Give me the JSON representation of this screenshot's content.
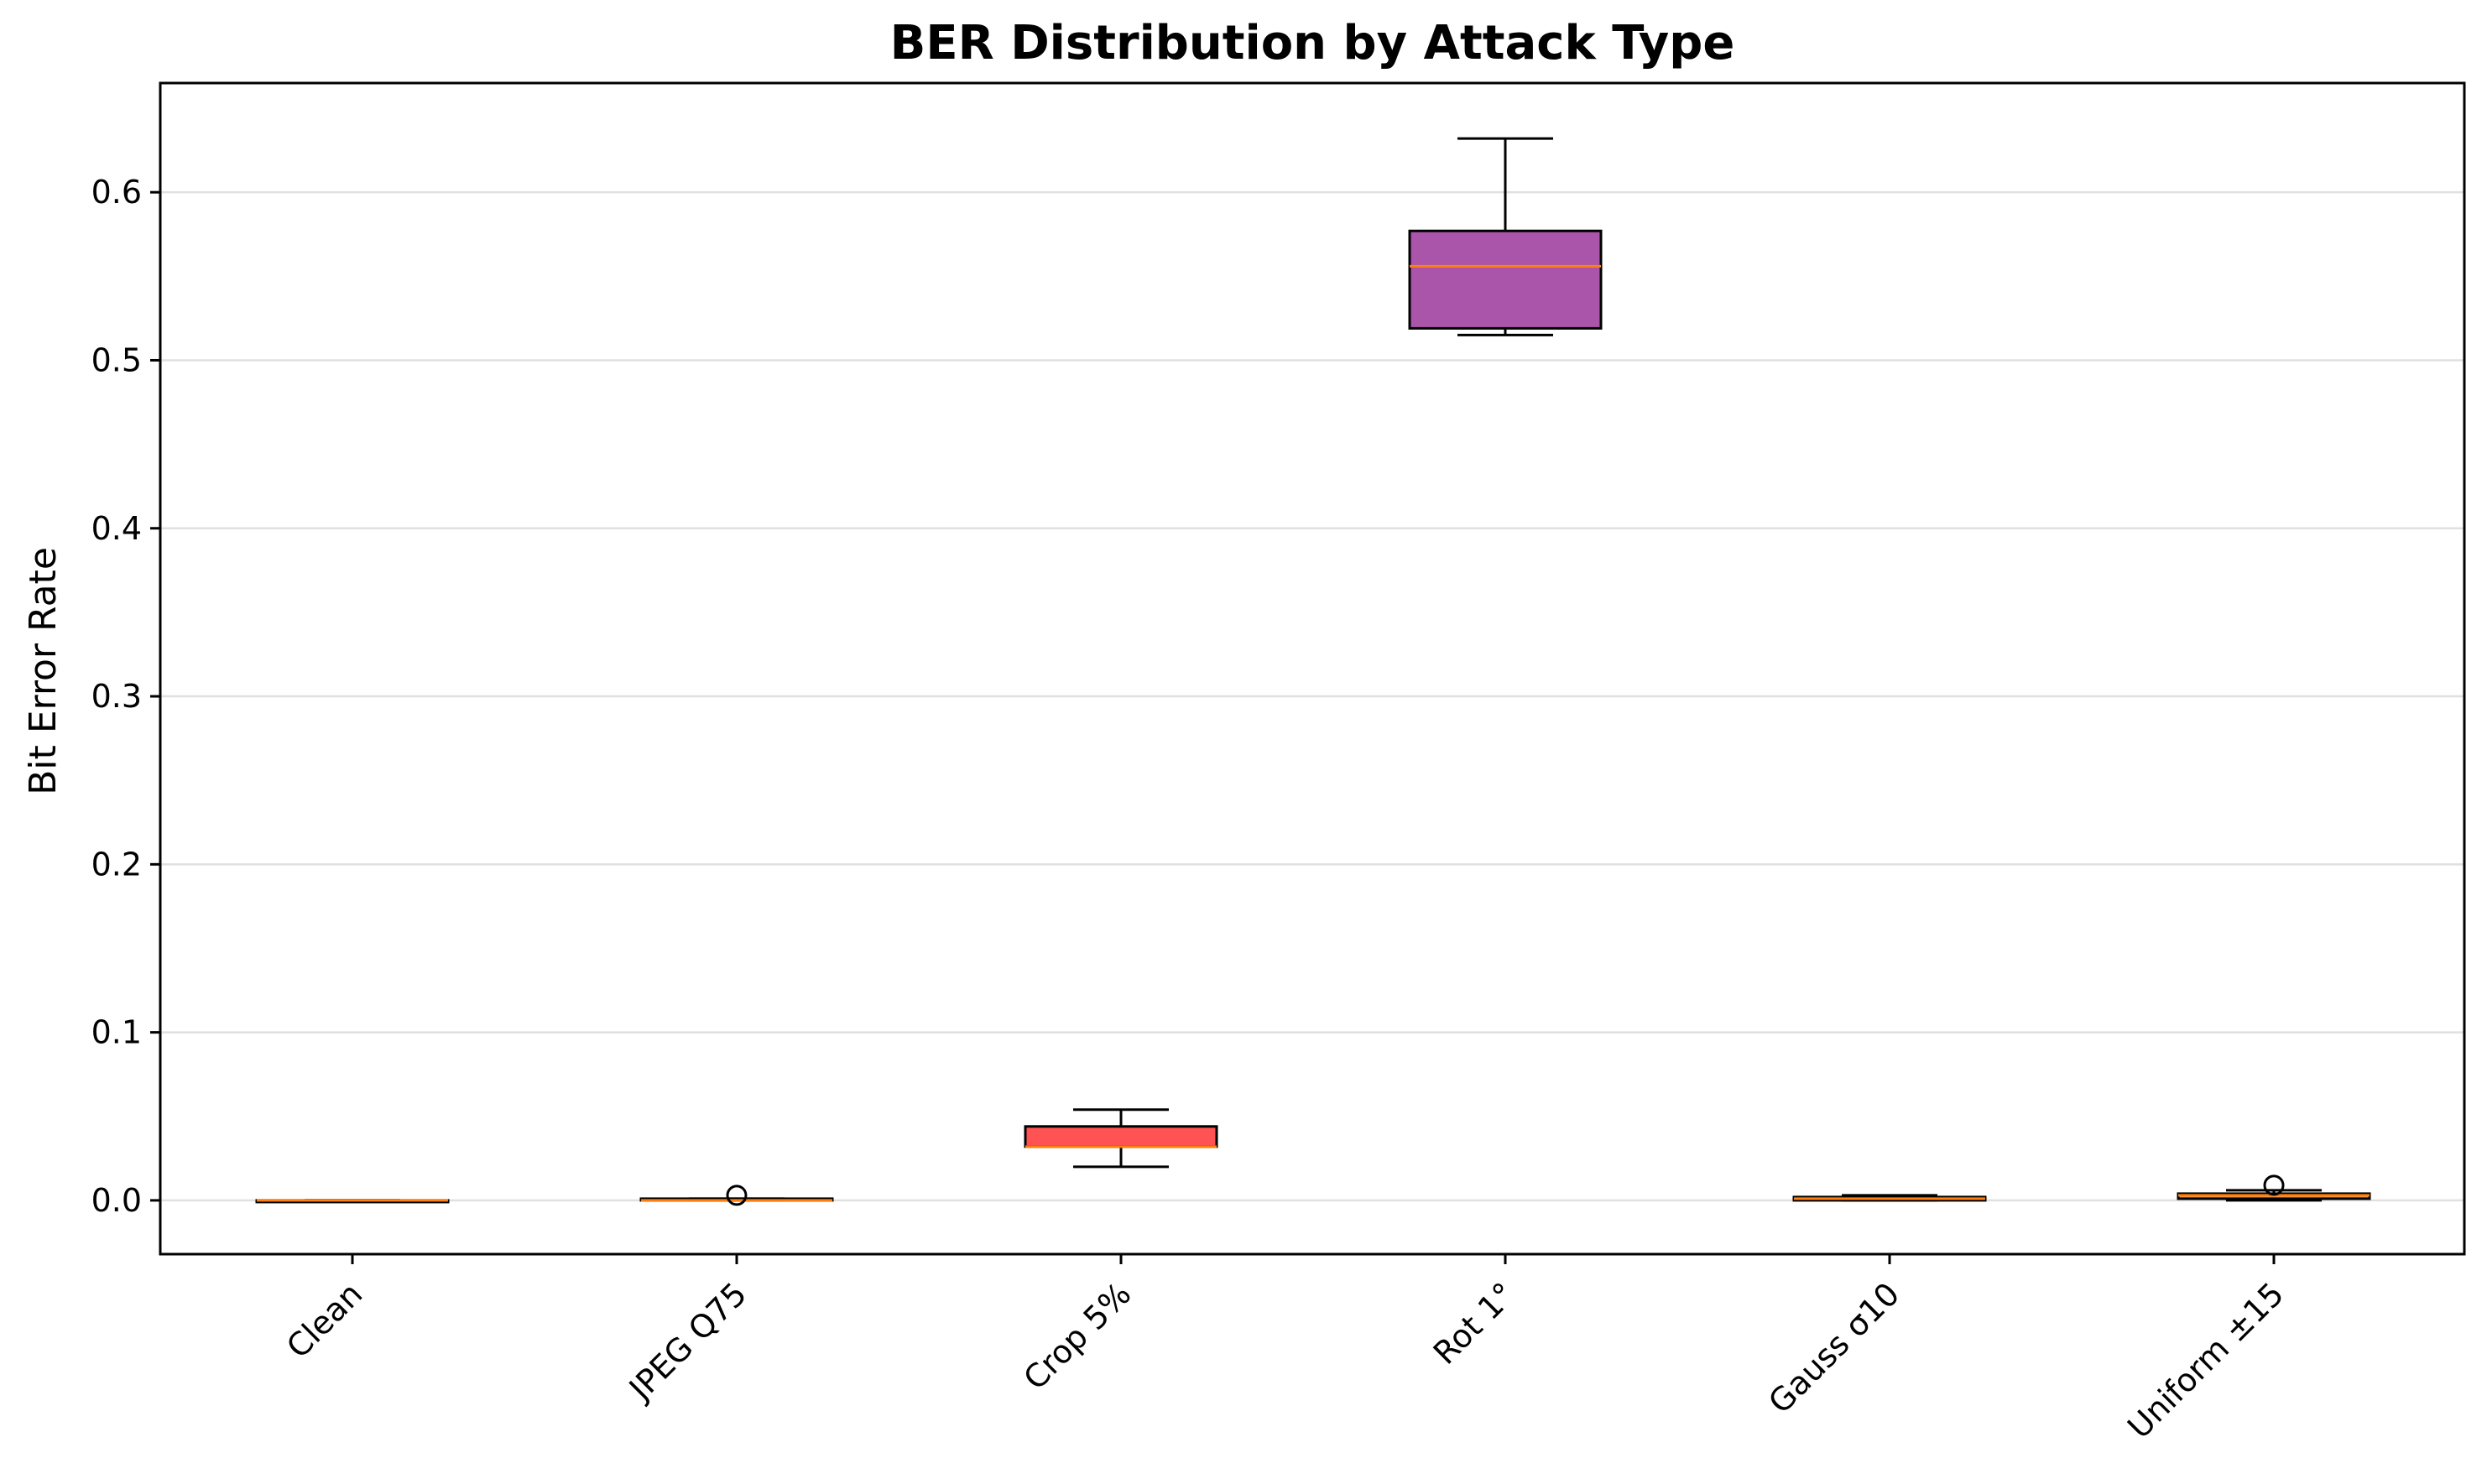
{
  "chart_data": {
    "type": "box",
    "title": "BER Distribution by Attack Type",
    "xlabel": "",
    "ylabel": "Bit Error Rate",
    "ylim": [
      -0.032,
      0.665
    ],
    "yticks": [
      0.0,
      0.1,
      0.2,
      0.3,
      0.4,
      0.5,
      0.6
    ],
    "ytick_labels": [
      "0.0",
      "0.1",
      "0.2",
      "0.3",
      "0.4",
      "0.5",
      "0.6"
    ],
    "grid": "y",
    "categories": [
      "Clean",
      "JPEG Q75",
      "Crop 5%",
      "Rot 1°",
      "Gauss σ10",
      "Uniform ±15"
    ],
    "boxes": [
      {
        "category": "Clean",
        "whisker_low": 0.0,
        "q1": 0.0,
        "median": 0.0,
        "q3": 0.0,
        "whisker_high": 0.0,
        "outliers": [],
        "color": "#e67e22"
      },
      {
        "category": "JPEG Q75",
        "whisker_low": 0.0,
        "q1": 0.0,
        "median": 0.0,
        "q3": 0.001,
        "whisker_high": 0.001,
        "outliers": [
          0.003
        ],
        "color": "#e67e22"
      },
      {
        "category": "Crop 5%",
        "whisker_low": 0.02,
        "q1": 0.032,
        "median": 0.032,
        "q3": 0.044,
        "whisker_high": 0.054,
        "outliers": [],
        "color": "#ff1a1a"
      },
      {
        "category": "Rot 1°",
        "whisker_low": 0.515,
        "q1": 0.519,
        "median": 0.556,
        "q3": 0.577,
        "whisker_high": 0.632,
        "outliers": [],
        "color": "#8e1b8e"
      },
      {
        "category": "Gauss σ10",
        "whisker_low": 0.0,
        "q1": 0.0,
        "median": 0.001,
        "q3": 0.002,
        "whisker_high": 0.003,
        "outliers": [],
        "color": "#e67e22"
      },
      {
        "category": "Uniform ±15",
        "whisker_low": 0.0,
        "q1": 0.001,
        "median": 0.003,
        "q3": 0.004,
        "whisker_high": 0.006,
        "outliers": [
          0.009
        ],
        "color": "#e67e22"
      }
    ],
    "median_color": "#ff7f0e",
    "box_alpha": 0.75
  }
}
